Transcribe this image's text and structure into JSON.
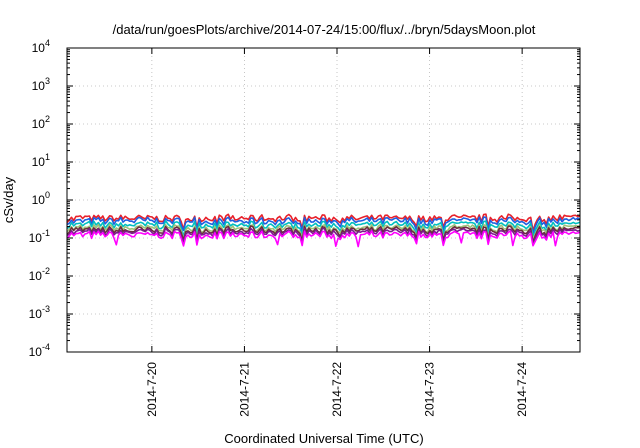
{
  "chart_data": {
    "type": "line",
    "title": "/data/run/goesPlots/archive/2014-07-24/15:00/flux/../bryn/5daysMoon.plot",
    "xlabel": "Coordinated Universal Time (UTC)",
    "ylabel": "cSv/day",
    "y_scale": "log",
    "ylim_exponents": [
      -4,
      4
    ],
    "y_ticks": [
      {
        "base": "10",
        "exp": "4"
      },
      {
        "base": "10",
        "exp": "3"
      },
      {
        "base": "10",
        "exp": "2"
      },
      {
        "base": "10",
        "exp": "1"
      },
      {
        "base": "10",
        "exp": "0"
      },
      {
        "base": "10",
        "exp": "-1"
      },
      {
        "base": "10",
        "exp": "-2"
      },
      {
        "base": "10",
        "exp": "-3"
      },
      {
        "base": "10",
        "exp": "-4"
      }
    ],
    "x_range": [
      "2014-07-19T02:00",
      "2014-07-24T15:00"
    ],
    "x_ticks": [
      "2014-7-20",
      "2014-7-21",
      "2014-7-22",
      "2014-7-23",
      "2014-7-24"
    ],
    "grid": true,
    "series": [
      {
        "color": "#e8202a",
        "level": 0.33
      },
      {
        "color": "#1e5fe0",
        "level": 0.28
      },
      {
        "color": "#00bfbf",
        "level": 0.22
      },
      {
        "color": "#9ec27a",
        "level": 0.18
      },
      {
        "color": "#6a2c3c",
        "level": 0.16
      },
      {
        "color": "#7a1c8c",
        "level": 0.14
      },
      {
        "color": "#ff00ff",
        "level": 0.12
      }
    ]
  }
}
